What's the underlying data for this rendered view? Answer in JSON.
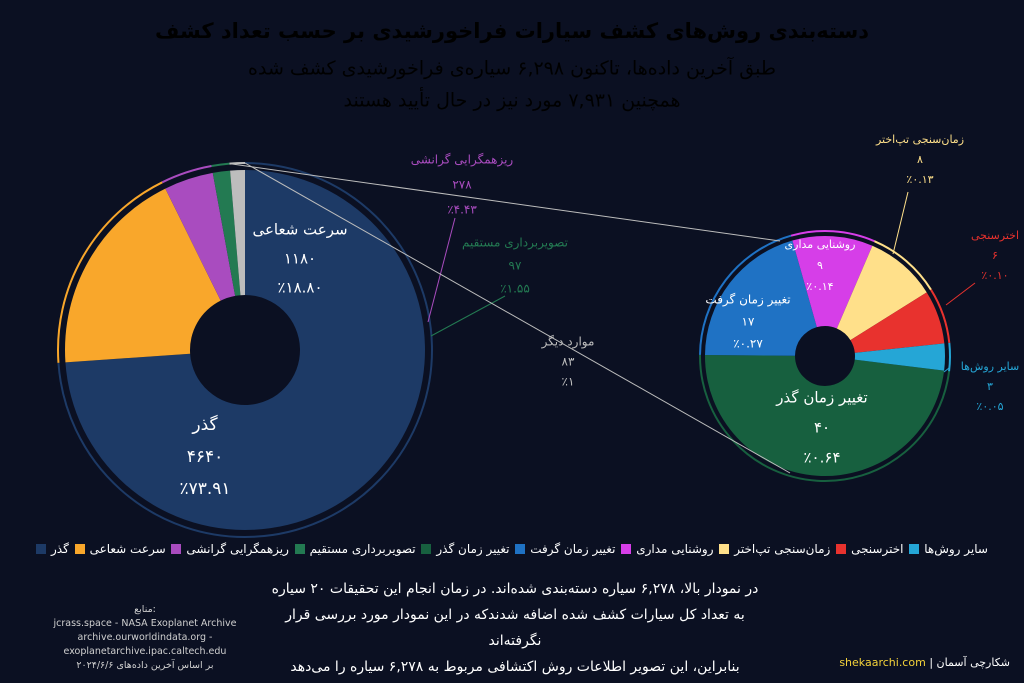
{
  "header": {
    "title": "دسته‌بندی روش‌های کشف سیارات فراخورشیدی بر حسب تعداد کشف",
    "subtitle": [
      "طبق آخرین داده‌ها، تاکنون ۶,۲۹۸ سیاره‌ی فراخورشیدی کشف شده",
      "همچنین ۷,۹۳۱ مورد نیز در حال تأیید هستند"
    ]
  },
  "chart_data": [
    {
      "type": "pie",
      "exploded": 4,
      "labels": [
        "گذر",
        "سرعت شعاعی",
        "ریزهمگرایی گرانشی",
        "تصویربرداری مستقیم",
        "موارد دیگر"
      ],
      "values": [
        4640,
        1180,
        278,
        97,
        83
      ],
      "value_labels": [
        "۴۶۴۰",
        "۱۱۸۰",
        "۲۷۸",
        "۹۷",
        "۸۳"
      ],
      "percents": [
        73.91,
        18.8,
        4.43,
        1.55,
        1
      ],
      "percent_labels": [
        "٪۷۳.۹۱",
        "٪۱۸.۸۰",
        "٪۴.۴۳",
        "٪۱.۵۵",
        "٪۱"
      ],
      "colors": [
        "#1d3a66",
        "#f9a72b",
        "#a94cbf",
        "#237a52",
        "#bdbdbd"
      ]
    },
    {
      "type": "pie",
      "labels": [
        "تغییر زمان گذر",
        "تغییر زمان گرفت",
        "روشنایی مداری",
        "زمان‌سنجی تپ‌اختر",
        "اخترسنجی",
        "سایر روش‌ها"
      ],
      "values": [
        40,
        17,
        9,
        8,
        6,
        3
      ],
      "value_labels": [
        "۴۰",
        "۱۷",
        "۹",
        "۸",
        "۶",
        "۳"
      ],
      "percents": [
        0.64,
        0.27,
        0.14,
        0.13,
        0.1,
        0.05
      ],
      "percent_labels": [
        "٪۰.۶۴",
        "٪۰.۲۷",
        "٪۰.۱۴",
        "٪۰.۱۳",
        "٪۰.۱۰",
        "٪۰.۰۵"
      ],
      "colors": [
        "#17603f",
        "#1f72c4",
        "#d63ee8",
        "#ffe08a",
        "#e8322e",
        "#25a6d6"
      ]
    }
  ],
  "note": [
    "در نمودار بالا، ۶,۲۷۸ سیاره دسته‌بندی شده‌اند. در زمان انجام این تحقیقات ۲۰ سیاره",
    "به تعداد کل سیارات کشف شده اضافه شدند‌که در این نمودار مورد بررسی قرار نگرفته‌اند",
    "بنابراین، این تصویر اطلاعات روش اکتشافی مربوط به ۶,۲۷۸ سیاره را می‌دهد"
  ],
  "sources": [
    "منابع:",
    "jcrass.space - NASA Exoplanet Archive",
    "archive.ourworldindata.org - exoplanetarchive.ipac.caltech.edu",
    "بر اساس آخرین داده‌های ۲۰۲۴/۶/۶"
  ],
  "footer": {
    "site": "shekaarchi.com",
    "brand": "| شکارچی آسمان"
  }
}
